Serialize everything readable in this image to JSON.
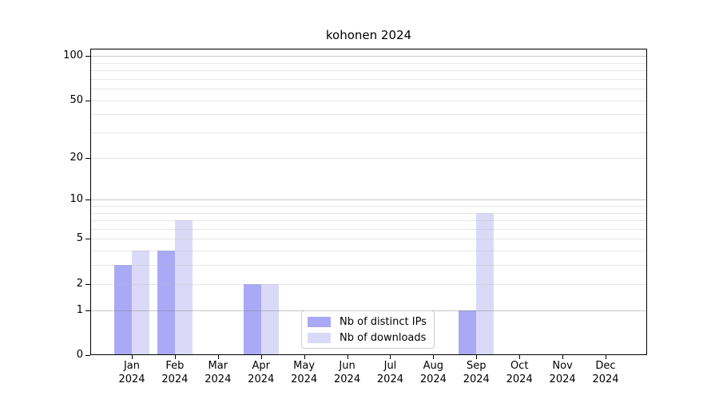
{
  "chart_data": {
    "type": "bar",
    "title": "kohonen 2024",
    "categories": [
      "Jan",
      "Feb",
      "Mar",
      "Apr",
      "May",
      "Jun",
      "Jul",
      "Aug",
      "Sep",
      "Oct",
      "Nov",
      "Dec"
    ],
    "year_label": "2024",
    "series": [
      {
        "name": "Nb of distinct IPs",
        "color": "#a9a9f5",
        "values": [
          3,
          4,
          0,
          2,
          0,
          0,
          0,
          0,
          1,
          0,
          0,
          0
        ]
      },
      {
        "name": "Nb of downloads",
        "color": "#dadaf8",
        "values": [
          4,
          7,
          0,
          2,
          0,
          0,
          0,
          0,
          8,
          0,
          0,
          0
        ]
      }
    ],
    "yscale": "log1p",
    "ylim": [
      0,
      112
    ],
    "yticks": [
      0,
      1,
      2,
      5,
      10,
      20,
      50,
      100
    ],
    "major_gridlines": [
      1,
      10,
      100
    ],
    "minor_gridlines": [
      2,
      3,
      4,
      5,
      6,
      7,
      8,
      9,
      20,
      30,
      40,
      50,
      60,
      70,
      80,
      90
    ],
    "grid": true,
    "legend_position": "inside-bottom-center",
    "colors": {
      "axis": "#000000",
      "grid_major": "#c6c6c6",
      "grid_minor": "#e9e9e9",
      "background": "#ffffff"
    }
  }
}
